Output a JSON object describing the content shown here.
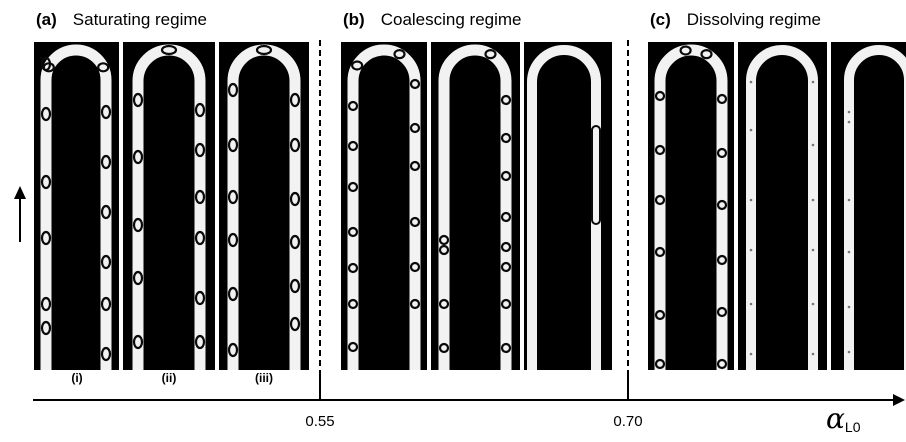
{
  "panels": [
    {
      "letter": "(a)",
      "title": "Saturating regime",
      "subpanels": [
        "(i)",
        "(ii)",
        "(iii)"
      ]
    },
    {
      "letter": "(b)",
      "title": "Coalescing regime"
    },
    {
      "letter": "(c)",
      "title": "Dissolving regime"
    }
  ],
  "axis": {
    "ticks": [
      "0.55",
      "0.70"
    ],
    "symbol": "α",
    "subscript": "L0"
  },
  "icons": {
    "flow_direction": "up-arrow-icon",
    "axis_direction": "right-arrow-icon"
  },
  "colors": {
    "frame_background": "#000000",
    "channel": "#f2f2f2",
    "bubble": "#0a0a0a"
  }
}
